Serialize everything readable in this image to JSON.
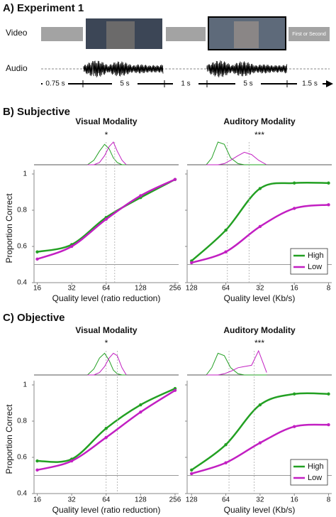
{
  "panel_a": {
    "title": "A) Experiment 1",
    "video_label": "Video",
    "audio_label": "Audio",
    "response_box": "First or Second",
    "durations": [
      "0.75 s",
      "5 s",
      "1 s",
      "5 s",
      "1.5 s"
    ]
  },
  "panel_titles": {
    "b": "B) Subjective",
    "c": "C) Objective"
  },
  "chart_data": [
    {
      "type": "line",
      "title": "Visual Modality",
      "annotation": "*",
      "xlabel": "Quality level (ratio reduction)",
      "ylabel": "Proportion Correct",
      "x": [
        16,
        32,
        64,
        128,
        256
      ],
      "log_x": true,
      "xlim": [
        15,
        275
      ],
      "xticks": [
        16,
        32,
        64,
        128,
        256
      ],
      "ylim": [
        0.4,
        1
      ],
      "yticks": [
        0.4,
        0.6,
        0.8,
        1
      ],
      "reference_line": 0.5,
      "density_x": [
        44,
        50,
        56,
        62,
        68,
        74,
        80,
        88,
        96
      ],
      "series": [
        {
          "color": "#23a023",
          "values": [
            0.57,
            0.61,
            0.76,
            0.87,
            0.97
          ],
          "threshold": 64,
          "density": [
            0,
            0.2,
            0.6,
            0.9,
            0.7,
            0.3,
            0.1,
            0,
            0
          ]
        },
        {
          "color": "#c21fc2",
          "values": [
            0.53,
            0.6,
            0.75,
            0.88,
            0.97
          ],
          "threshold": 76,
          "density": [
            0,
            0,
            0.1,
            0.4,
            0.8,
            1,
            0.6,
            0.2,
            0
          ]
        }
      ]
    },
    {
      "type": "line",
      "title": "Auditory Modality",
      "annotation": "***",
      "xlabel": "Quality level (Kb/s)",
      "x": [
        128,
        64,
        32,
        16,
        8
      ],
      "log_x": true,
      "xlim": [
        140,
        7.5
      ],
      "xticks": [
        128,
        64,
        32,
        16,
        8
      ],
      "ylim": [
        0.4,
        1
      ],
      "yticks": [
        0.4,
        0.6,
        0.8,
        1
      ],
      "reference_line": 0.5,
      "legend": "lower right",
      "density_x": [
        95,
        85,
        75,
        66,
        58,
        50,
        44,
        38,
        33,
        28
      ],
      "series": [
        {
          "name": "High",
          "color": "#23a023",
          "values": [
            0.52,
            0.69,
            0.92,
            0.95,
            0.95
          ],
          "threshold": 62,
          "density": [
            0,
            0.3,
            1,
            0.9,
            0.3,
            0.05,
            0,
            0,
            0,
            0
          ]
        },
        {
          "name": "Low",
          "color": "#c21fc2",
          "values": [
            0.51,
            0.57,
            0.71,
            0.81,
            0.83
          ],
          "threshold": 40,
          "density": [
            0,
            0,
            0,
            0.05,
            0.2,
            0.4,
            0.55,
            0.45,
            0.2,
            0
          ]
        }
      ]
    },
    {
      "type": "line",
      "title": "Visual Modality",
      "annotation": "*",
      "xlabel": "Quality level (ratio reduction)",
      "ylabel": "Proportion Correct",
      "x": [
        16,
        32,
        64,
        128,
        256
      ],
      "log_x": true,
      "xlim": [
        15,
        275
      ],
      "xticks": [
        16,
        32,
        64,
        128,
        256
      ],
      "ylim": [
        0.4,
        1
      ],
      "yticks": [
        0.4,
        0.6,
        0.8,
        1
      ],
      "reference_line": 0.5,
      "density_x": [
        44,
        50,
        56,
        62,
        68,
        74,
        80,
        88,
        96
      ],
      "series": [
        {
          "color": "#23a023",
          "values": [
            0.58,
            0.59,
            0.76,
            0.89,
            0.98
          ],
          "threshold": 64,
          "density": [
            0,
            0.25,
            0.7,
            0.9,
            0.6,
            0.2,
            0.05,
            0,
            0
          ]
        },
        {
          "color": "#c21fc2",
          "values": [
            0.53,
            0.58,
            0.71,
            0.85,
            0.97
          ],
          "threshold": 80,
          "density": [
            0,
            0,
            0.1,
            0.35,
            0.7,
            0.9,
            0.8,
            0.3,
            0
          ]
        }
      ]
    },
    {
      "type": "line",
      "title": "Auditory Modality",
      "annotation": "***",
      "xlabel": "Quality level (Kb/s)",
      "x": [
        128,
        64,
        32,
        16,
        8
      ],
      "log_x": true,
      "xlim": [
        140,
        7.5
      ],
      "xticks": [
        128,
        64,
        32,
        16,
        8
      ],
      "ylim": [
        0.4,
        1
      ],
      "yticks": [
        0.4,
        0.6,
        0.8,
        1
      ],
      "reference_line": 0.5,
      "legend": "lower right",
      "density_x": [
        95,
        85,
        75,
        66,
        58,
        50,
        44,
        38,
        33,
        28
      ],
      "series": [
        {
          "name": "High",
          "color": "#23a023",
          "values": [
            0.53,
            0.67,
            0.89,
            0.95,
            0.95
          ],
          "threshold": 60,
          "density": [
            0,
            0.3,
            0.9,
            0.8,
            0.3,
            0.05,
            0,
            0,
            0,
            0
          ]
        },
        {
          "name": "Low",
          "color": "#c21fc2",
          "values": [
            0.51,
            0.57,
            0.68,
            0.77,
            0.78
          ],
          "threshold": 36,
          "density": [
            0,
            0,
            0,
            0.05,
            0.15,
            0.3,
            0.35,
            0.4,
            1,
            0.1
          ]
        }
      ]
    }
  ]
}
